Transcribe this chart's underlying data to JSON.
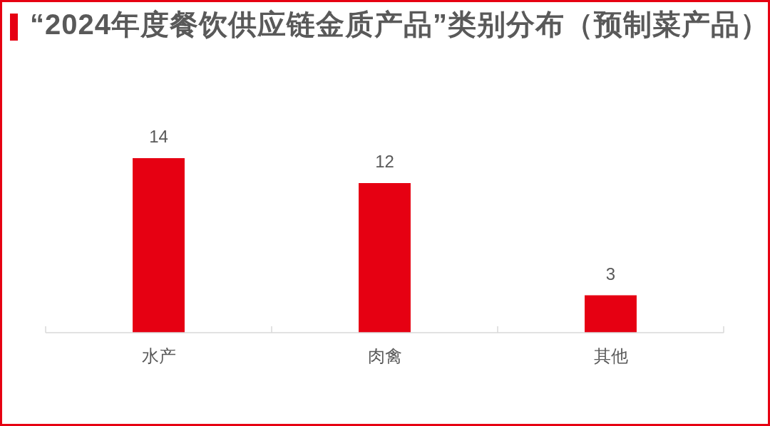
{
  "chart_data": {
    "type": "bar",
    "title": "“2024年度餐饮供应链金质产品”类别分布（预制菜产品）",
    "categories": [
      "水产",
      "肉禽",
      "其他"
    ],
    "values": [
      14,
      12,
      3
    ],
    "color": "#e60012",
    "data_labels": true
  }
}
